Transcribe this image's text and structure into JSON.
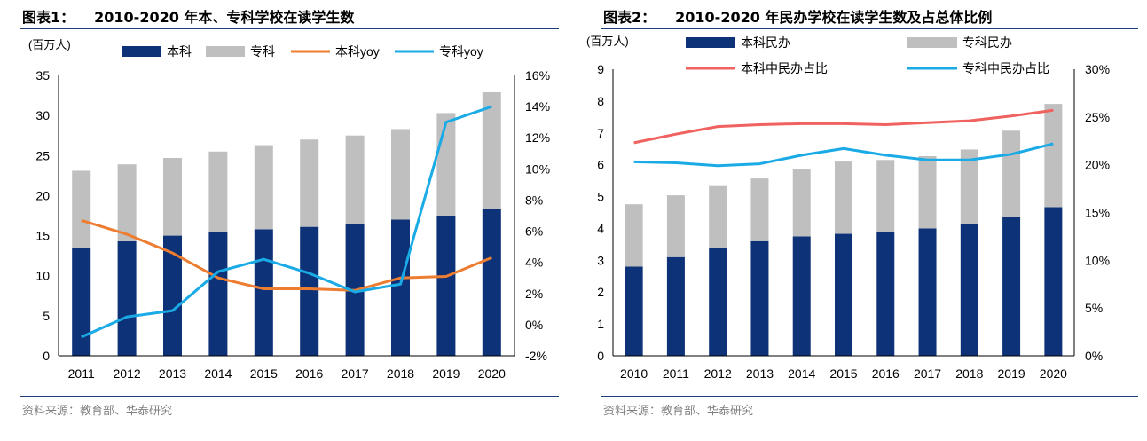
{
  "colors": {
    "navy": "#0d3278",
    "gray": "#bfbfbf",
    "orange": "#ed7d31",
    "cyan": "#1aabe6",
    "salmon": "#f0625f",
    "rule": "#1f3f7a"
  },
  "left": {
    "title_num": "图表1：",
    "title_text": "2010-2020 年本、专科学校在读学生数",
    "source": "资料来源：教育部、华泰研究"
  },
  "right": {
    "title_num": "图表2：",
    "title_text": "2010-2020 年民办学校在读学生数及占总体比例",
    "source": "资料来源：教育部、华泰研究"
  },
  "chart_data": [
    {
      "type": "bar",
      "stacked": true,
      "categories": [
        "2011",
        "2012",
        "2013",
        "2014",
        "2015",
        "2016",
        "2017",
        "2018",
        "2019",
        "2020"
      ],
      "unit_label": "(百万人)",
      "ylim": [
        0,
        35
      ],
      "yticks": [
        0,
        5,
        10,
        15,
        20,
        25,
        30,
        35
      ],
      "y2lim": [
        -2,
        16
      ],
      "y2ticks": [
        "-2%",
        "0%",
        "2%",
        "4%",
        "6%",
        "8%",
        "10%",
        "12%",
        "14%",
        "16%"
      ],
      "legend_position": "top",
      "series": [
        {
          "name": "本科",
          "type": "bar",
          "axis": "left",
          "color": "#0d3278",
          "values": [
            13.5,
            14.3,
            15.0,
            15.4,
            15.8,
            16.1,
            16.4,
            17.0,
            17.5,
            18.3
          ]
        },
        {
          "name": "专科",
          "type": "bar",
          "axis": "left",
          "color": "#bfbfbf",
          "values": [
            9.6,
            9.6,
            9.7,
            10.1,
            10.5,
            10.9,
            11.1,
            11.3,
            12.8,
            14.6
          ]
        },
        {
          "name": "本科yoy",
          "type": "line",
          "axis": "right",
          "color": "#ed7d31",
          "values": [
            6.7,
            5.8,
            4.6,
            3.0,
            2.3,
            2.3,
            2.2,
            3.0,
            3.1,
            4.3
          ]
        },
        {
          "name": "专科yoy",
          "type": "line",
          "axis": "right",
          "color": "#1aabe6",
          "values": [
            -0.8,
            0.5,
            0.9,
            3.4,
            4.2,
            3.3,
            2.1,
            2.6,
            13.0,
            14.0
          ]
        }
      ]
    },
    {
      "type": "bar",
      "stacked": true,
      "categories": [
        "2010",
        "2011",
        "2012",
        "2013",
        "2014",
        "2015",
        "2016",
        "2017",
        "2018",
        "2019",
        "2020"
      ],
      "unit_label": "(百万人)",
      "ylim": [
        0,
        9
      ],
      "yticks": [
        0,
        1,
        2,
        3,
        4,
        5,
        6,
        7,
        8,
        9
      ],
      "y2lim": [
        0,
        30
      ],
      "y2ticks": [
        "0%",
        "5%",
        "10%",
        "15%",
        "20%",
        "25%",
        "30%"
      ],
      "legend_position": "top",
      "series": [
        {
          "name": "本科民办",
          "type": "bar",
          "axis": "left",
          "color": "#0d3278",
          "values": [
            2.8,
            3.1,
            3.4,
            3.6,
            3.75,
            3.83,
            3.9,
            4.0,
            4.15,
            4.37,
            4.67
          ]
        },
        {
          "name": "专科民办",
          "type": "bar",
          "axis": "left",
          "color": "#bfbfbf",
          "values": [
            1.96,
            1.94,
            1.93,
            1.97,
            2.1,
            2.27,
            2.25,
            2.27,
            2.33,
            2.7,
            3.24
          ]
        },
        {
          "name": "本科中民办占比",
          "type": "line",
          "axis": "right",
          "color": "#f0625f",
          "values": [
            22.3,
            23.2,
            24.0,
            24.2,
            24.3,
            24.3,
            24.2,
            24.4,
            24.6,
            25.1,
            25.7
          ]
        },
        {
          "name": "专科中民办占比",
          "type": "line",
          "axis": "right",
          "color": "#1aabe6",
          "values": [
            20.3,
            20.2,
            19.9,
            20.1,
            21.0,
            21.7,
            21.0,
            20.5,
            20.5,
            21.1,
            22.2
          ]
        }
      ]
    }
  ]
}
